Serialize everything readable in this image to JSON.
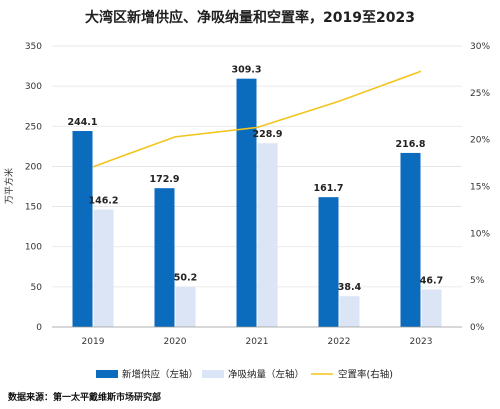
{
  "chart_data": {
    "type": "bar",
    "title": "大湾区新增供应、净吸纳量和空置率，2019至2023",
    "categories": [
      "2019",
      "2020",
      "2021",
      "2022",
      "2023"
    ],
    "ylabel": "万平方米",
    "ylim": [
      0,
      350
    ],
    "y2lim": [
      0,
      0.3
    ],
    "yticks": [
      "0",
      "50",
      "100",
      "150",
      "200",
      "250",
      "300",
      "350"
    ],
    "y2ticks": [
      "0%",
      "5%",
      "10%",
      "15%",
      "20%",
      "25%",
      "30%"
    ],
    "series": [
      {
        "name": "新增供应（左轴）",
        "type": "bar",
        "axis": "left",
        "color": "#0b6bbd",
        "values": [
          244.1,
          172.9,
          309.3,
          161.7,
          216.8
        ],
        "labels": [
          "244.1",
          "172.9",
          "309.3",
          "161.7",
          "216.8"
        ]
      },
      {
        "name": "净吸纳量（左轴）",
        "type": "bar",
        "axis": "left",
        "color": "#dbe5f5",
        "values": [
          146.2,
          50.2,
          228.9,
          38.4,
          46.7
        ],
        "labels": [
          "146.2",
          "50.2",
          "228.9",
          "38.4",
          "46.7"
        ]
      },
      {
        "name": "空置率(右轴)",
        "type": "line",
        "axis": "right",
        "color": "#f2c51c",
        "values": [
          0.171,
          0.203,
          0.213,
          0.241,
          0.273
        ]
      }
    ],
    "grid": true,
    "legend": "bottom"
  },
  "footer": {
    "source": "数据来源：第一太平戴维斯市场研究部"
  }
}
